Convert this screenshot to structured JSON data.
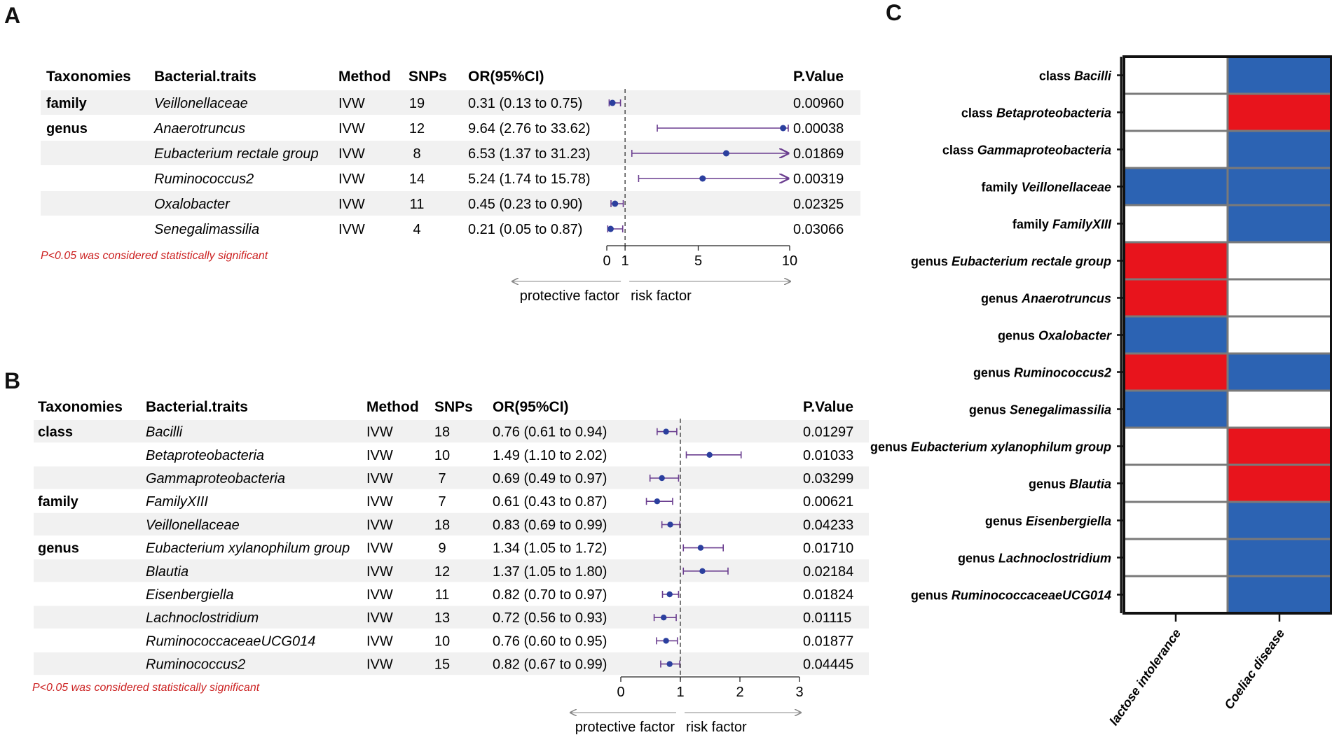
{
  "panels": {
    "a": "A",
    "b": "B",
    "c": "C"
  },
  "colors": {
    "ci": "#6a3d8f",
    "point": "#2b3f9e",
    "red": "#e8141c",
    "blue": "#2c63b3",
    "rowShade": "#f1f1f1",
    "note": "#cc2222"
  },
  "chart_data": [
    {
      "type": "forest",
      "panel": "A",
      "headers": {
        "taxonomies": "Taxonomies",
        "traits": "Bacterial.traits",
        "method": "Method",
        "snps": "SNPs",
        "or": "OR(95%CI)",
        "p": "P.Value"
      },
      "rows": [
        {
          "taxonomy": "family",
          "trait": "Veillonellaceae",
          "method": "IVW",
          "snps": "19",
          "or_text": "0.31 (0.13 to 0.75)",
          "or": 0.31,
          "lo": 0.13,
          "hi": 0.75,
          "p": "0.00960",
          "arrow": false
        },
        {
          "taxonomy": "genus",
          "trait": "Anaerotruncus",
          "method": "IVW",
          "snps": "12",
          "or_text": "9.64 (2.76 to 33.62)",
          "or": 9.64,
          "lo": 2.76,
          "hi": 33.62,
          "p": "0.00038",
          "arrow": false
        },
        {
          "taxonomy": "",
          "trait": "Eubacterium rectale group",
          "method": "IVW",
          "snps": "8",
          "or_text": "6.53 (1.37 to 31.23)",
          "or": 6.53,
          "lo": 1.37,
          "hi": 31.23,
          "p": "0.01869",
          "arrow": true
        },
        {
          "taxonomy": "",
          "trait": "Ruminococcus2",
          "method": "IVW",
          "snps": "14",
          "or_text": "5.24 (1.74 to 15.78)",
          "or": 5.24,
          "lo": 1.74,
          "hi": 15.78,
          "p": "0.00319",
          "arrow": true
        },
        {
          "taxonomy": "",
          "trait": "Oxalobacter",
          "method": "IVW",
          "snps": "11",
          "or_text": "0.45 (0.23 to 0.90)",
          "or": 0.45,
          "lo": 0.23,
          "hi": 0.9,
          "p": "0.02325",
          "arrow": false
        },
        {
          "taxonomy": "",
          "trait": "Senegalimassilia",
          "method": "IVW",
          "snps": "4",
          "or_text": "0.21 (0.05 to 0.87)",
          "or": 0.21,
          "lo": 0.05,
          "hi": 0.87,
          "p": "0.03066",
          "arrow": false
        }
      ],
      "xlim": [
        0,
        10
      ],
      "ticks": [
        "0",
        "1",
        "5",
        "10"
      ],
      "tick_values": [
        0,
        1,
        5,
        10
      ],
      "ref_line": 1,
      "protective_label": "protective factor",
      "risk_label": "risk factor",
      "note": "P<0.05 was considered statistically significant"
    },
    {
      "type": "forest",
      "panel": "B",
      "headers": {
        "taxonomies": "Taxonomies",
        "traits": "Bacterial.traits",
        "method": "Method",
        "snps": "SNPs",
        "or": "OR(95%CI)",
        "p": "P.Value"
      },
      "rows": [
        {
          "taxonomy": "class",
          "trait": "Bacilli",
          "method": "IVW",
          "snps": "18",
          "or_text": "0.76 (0.61 to 0.94)",
          "or": 0.76,
          "lo": 0.61,
          "hi": 0.94,
          "p": "0.01297"
        },
        {
          "taxonomy": "",
          "trait": "Betaproteobacteria",
          "method": "IVW",
          "snps": "10",
          "or_text": "1.49 (1.10 to 2.02)",
          "or": 1.49,
          "lo": 1.1,
          "hi": 2.02,
          "p": "0.01033"
        },
        {
          "taxonomy": "",
          "trait": "Gammaproteobacteria",
          "method": "IVW",
          "snps": "7",
          "or_text": "0.69 (0.49 to 0.97)",
          "or": 0.69,
          "lo": 0.49,
          "hi": 0.97,
          "p": "0.03299"
        },
        {
          "taxonomy": "family",
          "trait": "FamilyXIII",
          "method": "IVW",
          "snps": "7",
          "or_text": "0.61 (0.43 to 0.87)",
          "or": 0.61,
          "lo": 0.43,
          "hi": 0.87,
          "p": "0.00621"
        },
        {
          "taxonomy": "",
          "trait": "Veillonellaceae",
          "method": "IVW",
          "snps": "18",
          "or_text": "0.83 (0.69 to 0.99)",
          "or": 0.83,
          "lo": 0.69,
          "hi": 0.99,
          "p": "0.04233"
        },
        {
          "taxonomy": "genus",
          "trait": "Eubacterium xylanophilum group",
          "method": "IVW",
          "snps": "9",
          "or_text": "1.34 (1.05 to 1.72)",
          "or": 1.34,
          "lo": 1.05,
          "hi": 1.72,
          "p": "0.01710"
        },
        {
          "taxonomy": "",
          "trait": "Blautia",
          "method": "IVW",
          "snps": "12",
          "or_text": "1.37 (1.05 to 1.80)",
          "or": 1.37,
          "lo": 1.05,
          "hi": 1.8,
          "p": "0.02184"
        },
        {
          "taxonomy": "",
          "trait": "Eisenbergiella",
          "method": "IVW",
          "snps": "11",
          "or_text": "0.82 (0.70 to 0.97)",
          "or": 0.82,
          "lo": 0.7,
          "hi": 0.97,
          "p": "0.01824"
        },
        {
          "taxonomy": "",
          "trait": "Lachnoclostridium",
          "method": "IVW",
          "snps": "13",
          "or_text": "0.72 (0.56 to 0.93)",
          "or": 0.72,
          "lo": 0.56,
          "hi": 0.93,
          "p": "0.01115"
        },
        {
          "taxonomy": "",
          "trait": "RuminococcaceaeUCG014",
          "method": "IVW",
          "snps": "10",
          "or_text": "0.76 (0.60 to 0.95)",
          "or": 0.76,
          "lo": 0.6,
          "hi": 0.95,
          "p": "0.01877"
        },
        {
          "taxonomy": "",
          "trait": "Ruminococcus2",
          "method": "IVW",
          "snps": "15",
          "or_text": "0.82 (0.67 to 0.99)",
          "or": 0.82,
          "lo": 0.67,
          "hi": 0.99,
          "p": "0.04445"
        }
      ],
      "xlim": [
        0,
        3
      ],
      "ticks": [
        "0",
        "1",
        "2",
        "3"
      ],
      "tick_values": [
        0,
        1,
        2,
        3
      ],
      "ref_line": 1,
      "protective_label": "protective factor",
      "risk_label": "risk factor",
      "note": "P<0.05 was considered statistically significant"
    },
    {
      "type": "heatmap",
      "panel": "C",
      "columns": [
        "lactose intolerance",
        "Coeliac disease"
      ],
      "rows": [
        {
          "prefix": "class",
          "name": "Bacilli",
          "values": [
            "none",
            "protective"
          ]
        },
        {
          "prefix": "class",
          "name": "Betaproteobacteria",
          "values": [
            "none",
            "risk"
          ]
        },
        {
          "prefix": "class",
          "name": "Gammaproteobacteria",
          "values": [
            "none",
            "protective"
          ]
        },
        {
          "prefix": "family",
          "name": "Veillonellaceae",
          "values": [
            "protective",
            "protective"
          ]
        },
        {
          "prefix": "family",
          "name": "FamilyXIII",
          "values": [
            "none",
            "protective"
          ]
        },
        {
          "prefix": "genus",
          "name": "Eubacterium rectale group",
          "values": [
            "risk",
            "none"
          ]
        },
        {
          "prefix": "genus",
          "name": "Anaerotruncus",
          "values": [
            "risk",
            "none"
          ]
        },
        {
          "prefix": "genus",
          "name": "Oxalobacter",
          "values": [
            "protective",
            "none"
          ]
        },
        {
          "prefix": "genus",
          "name": "Ruminococcus2",
          "values": [
            "risk",
            "protective"
          ]
        },
        {
          "prefix": "genus",
          "name": "Senegalimassilia",
          "values": [
            "protective",
            "none"
          ]
        },
        {
          "prefix": "genus",
          "name": "Eubacterium xylanophilum group",
          "values": [
            "none",
            "risk"
          ]
        },
        {
          "prefix": "genus",
          "name": "Blautia",
          "values": [
            "none",
            "risk"
          ]
        },
        {
          "prefix": "genus",
          "name": "Eisenbergiella",
          "values": [
            "none",
            "protective"
          ]
        },
        {
          "prefix": "genus",
          "name": "Lachnoclostridium",
          "values": [
            "none",
            "protective"
          ]
        },
        {
          "prefix": "genus",
          "name": "RuminococcaceaeUCG014",
          "values": [
            "none",
            "protective"
          ]
        }
      ]
    }
  ]
}
